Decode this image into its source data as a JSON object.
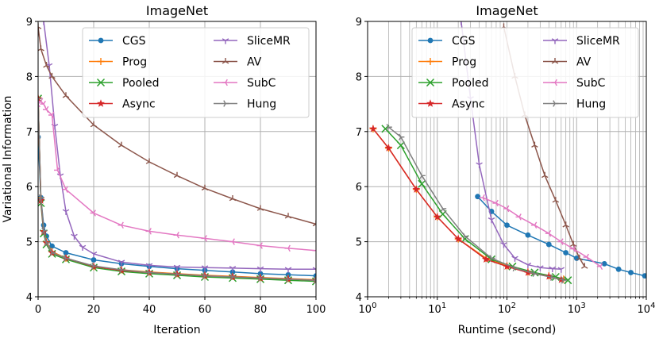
{
  "chart_data": [
    {
      "type": "line",
      "title": "ImageNet",
      "xlabel": "Iteration",
      "ylabel": "Variational Information",
      "xlim": [
        0,
        100
      ],
      "ylim": [
        4,
        9
      ],
      "xticks": [
        "0",
        "20",
        "40",
        "60",
        "80",
        "100"
      ],
      "yticks": [
        "4",
        "5",
        "6",
        "7",
        "8",
        "9"
      ],
      "grid": true,
      "legend_position": "top-right",
      "series": [
        {
          "name": "CGS",
          "color": "#1f77b4",
          "marker": "circle",
          "x": [
            0,
            1,
            2,
            3,
            5,
            10,
            20,
            30,
            40,
            50,
            60,
            70,
            80,
            90,
            100
          ],
          "y": [
            6.9,
            5.8,
            5.3,
            5.1,
            4.92,
            4.8,
            4.67,
            4.6,
            4.55,
            4.51,
            4.48,
            4.45,
            4.42,
            4.4,
            4.38
          ]
        },
        {
          "name": "Prog",
          "color": "#ff7f0e",
          "marker": "plus",
          "x": [
            0,
            1,
            2,
            3,
            5,
            10,
            20,
            30,
            40,
            50,
            60,
            70,
            80,
            90,
            100
          ],
          "y": [
            7.6,
            5.8,
            5.2,
            5.0,
            4.82,
            4.7,
            4.55,
            4.49,
            4.45,
            4.42,
            4.39,
            4.37,
            4.35,
            4.33,
            4.31
          ]
        },
        {
          "name": "Pooled",
          "color": "#2ca02c",
          "marker": "x",
          "x": [
            0,
            1,
            2,
            3,
            5,
            10,
            20,
            30,
            40,
            50,
            60,
            70,
            80,
            90,
            100
          ],
          "y": [
            7.6,
            5.7,
            5.15,
            4.95,
            4.78,
            4.68,
            4.53,
            4.46,
            4.42,
            4.39,
            4.36,
            4.34,
            4.32,
            4.3,
            4.28
          ]
        },
        {
          "name": "Async",
          "color": "#d62728",
          "marker": "star",
          "x": [
            0,
            1,
            2,
            3,
            5,
            10,
            20,
            30,
            40,
            50,
            60,
            70,
            80,
            90,
            100
          ],
          "y": [
            7.6,
            5.75,
            5.18,
            4.98,
            4.8,
            4.7,
            4.55,
            4.48,
            4.44,
            4.41,
            4.38,
            4.36,
            4.34,
            4.32,
            4.3
          ]
        },
        {
          "name": "SliceMR",
          "color": "#9467bd",
          "marker": "tri_down",
          "x": [
            2,
            4,
            6,
            8,
            10,
            13,
            16,
            20,
            30,
            40,
            50,
            60,
            70,
            80,
            90,
            100
          ],
          "y": [
            9.0,
            8.2,
            7.1,
            6.2,
            5.55,
            5.1,
            4.9,
            4.78,
            4.63,
            4.57,
            4.54,
            4.53,
            4.52,
            4.51,
            4.5,
            4.5
          ]
        },
        {
          "name": "AV",
          "color": "#8c564b",
          "marker": "tri_up",
          "x": [
            0,
            1,
            3,
            5,
            10,
            20,
            30,
            40,
            50,
            60,
            70,
            80,
            90,
            100
          ],
          "y": [
            8.9,
            8.5,
            8.2,
            8.0,
            7.65,
            7.12,
            6.75,
            6.45,
            6.2,
            5.97,
            5.78,
            5.6,
            5.46,
            5.32
          ]
        },
        {
          "name": "SubC",
          "color": "#e377c2",
          "marker": "tri_left",
          "x": [
            0,
            1,
            2,
            3,
            5,
            7,
            10,
            20,
            30,
            40,
            50,
            60,
            70,
            80,
            90,
            100
          ],
          "y": [
            7.5,
            7.55,
            7.5,
            7.4,
            7.3,
            6.3,
            5.95,
            5.52,
            5.3,
            5.19,
            5.12,
            5.06,
            5.0,
            4.93,
            4.88,
            4.84
          ]
        },
        {
          "name": "Hung",
          "color": "#7f7f7f",
          "marker": "tri_right",
          "x": [
            0,
            1,
            2,
            3,
            5,
            10,
            20,
            30,
            40,
            50,
            60,
            70,
            80,
            90,
            100
          ],
          "y": [
            7.6,
            5.8,
            5.2,
            4.98,
            4.8,
            4.7,
            4.56,
            4.49,
            4.44,
            4.41,
            4.38,
            4.36,
            4.34,
            4.32,
            4.3
          ]
        }
      ]
    },
    {
      "type": "line",
      "title": "ImageNet",
      "xlabel": "Runtime (second)",
      "ylabel": "",
      "xscale": "log",
      "xlim": [
        1,
        10000
      ],
      "ylim": [
        4,
        9
      ],
      "xticks": [
        "1",
        "10",
        "100",
        "1000",
        "10000"
      ],
      "yticks": [
        "4",
        "5",
        "6",
        "7",
        "8",
        "9"
      ],
      "grid": true,
      "legend_position": "top-right",
      "series": [
        {
          "name": "CGS",
          "color": "#1f77b4",
          "marker": "circle",
          "x": [
            38,
            60,
            100,
            200,
            400,
            700,
            1000,
            2500,
            4000,
            6000,
            9500
          ],
          "y": [
            5.82,
            5.55,
            5.3,
            5.12,
            4.95,
            4.8,
            4.7,
            4.6,
            4.5,
            4.44,
            4.38
          ]
        },
        {
          "name": "Prog",
          "color": "#ff7f0e",
          "marker": "plus",
          "x": [
            1.2,
            2,
            5,
            10,
            20,
            50,
            100,
            200,
            400,
            650
          ],
          "y": [
            7.05,
            6.7,
            5.95,
            5.45,
            5.05,
            4.7,
            4.56,
            4.45,
            4.38,
            4.32
          ]
        },
        {
          "name": "Pooled",
          "color": "#2ca02c",
          "marker": "x",
          "x": [
            1.8,
            3,
            6,
            12,
            25,
            60,
            120,
            250,
            500,
            750
          ],
          "y": [
            7.05,
            6.75,
            6.05,
            5.5,
            5.05,
            4.68,
            4.55,
            4.44,
            4.36,
            4.3
          ]
        },
        {
          "name": "Async",
          "color": "#d62728",
          "marker": "star",
          "x": [
            1.2,
            2,
            5,
            10,
            20,
            50,
            100,
            200,
            400,
            600
          ],
          "y": [
            7.05,
            6.7,
            5.95,
            5.45,
            5.05,
            4.68,
            4.55,
            4.44,
            4.37,
            4.31
          ]
        },
        {
          "name": "SliceMR",
          "color": "#9467bd",
          "marker": "tri_down",
          "x": [
            22,
            30,
            40,
            60,
            90,
            130,
            200,
            300,
            450,
            600
          ],
          "y": [
            9.0,
            7.6,
            6.4,
            5.4,
            4.95,
            4.7,
            4.58,
            4.53,
            4.51,
            4.5
          ]
        },
        {
          "name": "AV",
          "color": "#8c564b",
          "marker": "tri_up",
          "x": [
            90,
            130,
            180,
            250,
            350,
            500,
            700,
            900,
            1100,
            1300
          ],
          "y": [
            8.9,
            8.0,
            7.3,
            6.75,
            6.2,
            5.75,
            5.3,
            4.95,
            4.7,
            4.55
          ]
        },
        {
          "name": "SubC",
          "color": "#e377c2",
          "marker": "tri_left",
          "x": [
            45,
            70,
            100,
            150,
            250,
            400,
            600,
            900,
            1400,
            2200
          ],
          "y": [
            5.8,
            5.7,
            5.6,
            5.45,
            5.3,
            5.15,
            5.0,
            4.87,
            4.72,
            4.55
          ]
        },
        {
          "name": "Hung",
          "color": "#7f7f7f",
          "marker": "tri_right",
          "x": [
            2,
            3,
            6,
            12,
            25,
            60,
            130,
            250,
            450,
            650
          ],
          "y": [
            7.08,
            6.9,
            6.2,
            5.6,
            5.1,
            4.7,
            4.52,
            4.42,
            4.35,
            4.3
          ]
        }
      ]
    }
  ]
}
